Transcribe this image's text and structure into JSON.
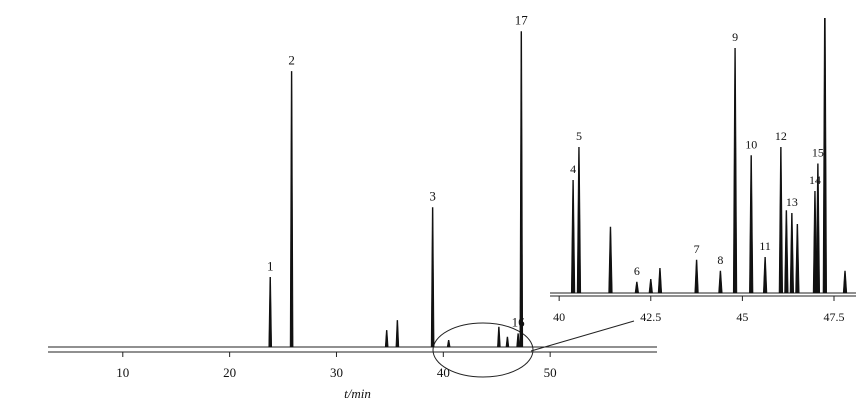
{
  "chart_data": [
    {
      "type": "peaks",
      "x_label": "t/min",
      "xlim": [
        3,
        60
      ],
      "ylim": [
        0,
        100
      ],
      "xticks": [
        10,
        20,
        30,
        40,
        50
      ],
      "peaks": [
        {
          "t": 23.8,
          "height": 21,
          "label": "1"
        },
        {
          "t": 25.8,
          "height": 83,
          "label": "2"
        },
        {
          "t": 34.7,
          "height": 5
        },
        {
          "t": 35.7,
          "height": 8
        },
        {
          "t": 39.0,
          "height": 42,
          "label": "3"
        },
        {
          "t": 40.5,
          "height": 2
        },
        {
          "t": 45.2,
          "height": 6
        },
        {
          "t": 46.0,
          "height": 3
        },
        {
          "t": 47.0,
          "height": 4,
          "label": "16"
        },
        {
          "t": 47.3,
          "height": 95,
          "label": "17"
        }
      ]
    },
    {
      "type": "peaks",
      "xlim": [
        39.75,
        48.1
      ],
      "ylim": [
        0,
        100
      ],
      "xticks": [
        40,
        {
          "value": 42.5,
          "label": "42.5"
        },
        45,
        {
          "value": 47.5,
          "label": "47.5"
        }
      ],
      "peaks": [
        {
          "t": 40.38,
          "height": 41,
          "label": "4"
        },
        {
          "t": 40.54,
          "height": 53,
          "label": "5"
        },
        {
          "t": 41.4,
          "height": 24
        },
        {
          "t": 42.12,
          "height": 4,
          "label": "6"
        },
        {
          "t": 42.5,
          "height": 5
        },
        {
          "t": 42.75,
          "height": 9
        },
        {
          "t": 43.75,
          "height": 12,
          "label": "7"
        },
        {
          "t": 44.4,
          "height": 8,
          "label": "8"
        },
        {
          "t": 44.8,
          "height": 89,
          "label": "9"
        },
        {
          "t": 45.24,
          "height": 50,
          "label": "10"
        },
        {
          "t": 45.62,
          "height": 13,
          "label": "11"
        },
        {
          "t": 46.05,
          "height": 53,
          "label": "12"
        },
        {
          "t": 46.2,
          "height": 30
        },
        {
          "t": 46.35,
          "height": 29,
          "label": "13"
        },
        {
          "t": 46.5,
          "height": 25
        },
        {
          "t": 46.98,
          "height": 37,
          "label": "14"
        },
        {
          "t": 47.06,
          "height": 47,
          "label": "15"
        },
        {
          "t": 47.25,
          "height": 110
        },
        {
          "t": 47.8,
          "height": 8
        }
      ]
    }
  ]
}
